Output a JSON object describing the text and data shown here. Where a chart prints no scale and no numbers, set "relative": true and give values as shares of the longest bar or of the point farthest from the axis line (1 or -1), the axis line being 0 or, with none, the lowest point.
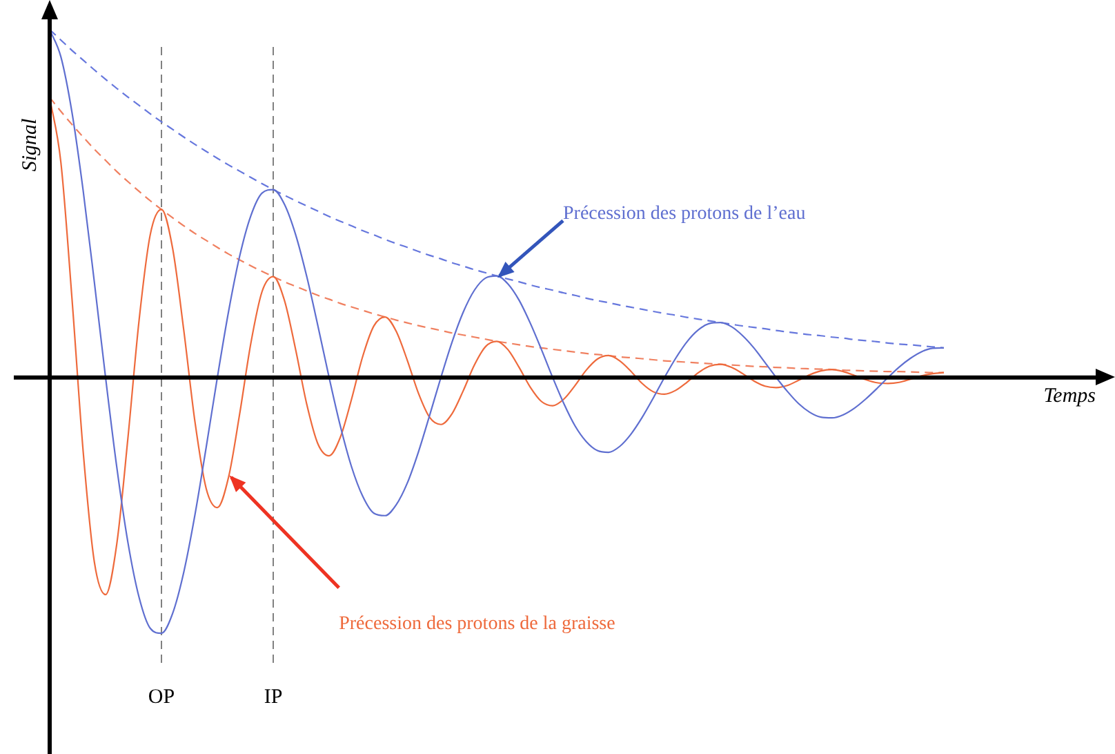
{
  "chart_data": {
    "type": "line",
    "relative": true,
    "xlabel": "Temps",
    "ylabel": "Signal",
    "legend": false,
    "marker": "none",
    "grid": false,
    "categories": [
      null,
      null,
      null,
      null,
      null,
      null,
      null,
      null,
      null,
      null,
      "OP",
      null,
      null,
      null,
      null,
      null,
      null,
      null,
      null,
      null,
      "IP",
      null,
      null,
      null,
      null,
      null,
      null,
      null,
      null,
      null,
      null,
      null,
      null,
      null,
      null,
      null,
      null,
      null,
      null,
      null,
      null,
      null,
      null,
      null,
      null,
      null,
      null,
      null,
      null,
      null,
      null,
      null,
      null,
      null,
      null,
      null,
      null,
      null,
      null,
      null,
      null,
      null,
      null,
      null,
      null,
      null,
      null,
      null,
      null,
      null,
      null,
      null,
      null,
      null,
      null,
      null,
      null,
      null,
      null,
      null,
      null
    ],
    "ref_lines": [
      {
        "axis": "x",
        "value": "OP",
        "color": "#808080",
        "line_style": "dashed"
      },
      {
        "axis": "x",
        "value": "IP",
        "color": "#808080",
        "line_style": "dashed"
      }
    ],
    "series": [
      {
        "name": "Précession des protons de l’eau",
        "color": "#5f6fd0",
        "line_style": "solid",
        "values": [
          1,
          0.922,
          0.761,
          0.536,
          0.273,
          0,
          -0.257,
          -0.474,
          -0.632,
          -0.721,
          -0.735,
          -0.678,
          -0.559,
          -0.394,
          -0.201,
          0,
          0.189,
          0.349,
          0.465,
          0.53,
          0.54,
          0.498,
          0.411,
          0.29,
          0.148,
          0,
          -0.139,
          -0.256,
          -0.341,
          -0.39,
          -0.397,
          -0.366,
          -0.303,
          -0.213,
          -0.108,
          0,
          0.102,
          0.188,
          0.251,
          0.286,
          0.292,
          0.269,
          0.222,
          0.156,
          0.08,
          0,
          -0.075,
          -0.139,
          -0.184,
          -0.21,
          -0.215,
          -0.198,
          -0.163,
          -0.115,
          -0.059,
          0,
          0.055,
          0.102,
          0.136,
          0.155,
          0.158,
          0.146,
          0.12,
          0.085,
          0.043,
          0,
          -0.04,
          -0.075,
          -0.1,
          -0.114,
          -0.116,
          -0.107,
          -0.088,
          -0.062,
          -0.032,
          0,
          0.03,
          0.055,
          0.074,
          0.084,
          0.085
        ]
      },
      {
        "name": "Précession des protons de la graisse",
        "color": "#ee6a3c",
        "line_style": "solid",
        "values": [
          0.805,
          0.619,
          0.225,
          -0.214,
          -0.531,
          -0.624,
          -0.479,
          -0.174,
          0.165,
          0.411,
          0.483,
          0.371,
          0.135,
          -0.128,
          -0.319,
          -0.374,
          -0.287,
          -0.104,
          0.099,
          0.247,
          0.29,
          0.222,
          0.081,
          -0.077,
          -0.191,
          -0.225,
          -0.172,
          -0.063,
          0.06,
          0.148,
          0.174,
          0.133,
          0.049,
          -0.046,
          -0.115,
          -0.135,
          -0.104,
          -0.038,
          0.036,
          0.089,
          0.104,
          0.08,
          0.029,
          -0.028,
          -0.069,
          -0.081,
          -0.062,
          -0.023,
          0.021,
          0.053,
          0.063,
          0.048,
          0.018,
          -0.017,
          -0.041,
          -0.048,
          -0.037,
          -0.014,
          0.013,
          0.032,
          0.038,
          0.029,
          0.011,
          -0.01,
          -0.025,
          -0.029,
          -0.023,
          -0.008,
          0.008,
          0.019,
          0.023,
          0.017,
          0.006,
          -0.006,
          -0.015,
          -0.017,
          -0.014,
          -0.005,
          0.005,
          0.011,
          0.014
        ]
      },
      {
        "color": "#6677dd",
        "line_style": "dashed",
        "values": [
          1,
          0.97,
          0.94,
          0.912,
          0.884,
          0.857,
          0.831,
          0.806,
          0.782,
          0.758,
          0.735,
          0.713,
          0.691,
          0.67,
          0.65,
          0.63,
          0.611,
          0.593,
          0.575,
          0.557,
          0.54,
          0.524,
          0.508,
          0.493,
          0.478,
          0.463,
          0.449,
          0.436,
          0.422,
          0.41,
          0.397,
          0.385,
          0.374,
          0.362,
          0.351,
          0.341,
          0.33,
          0.32,
          0.31,
          0.301,
          0.292,
          0.283,
          0.275,
          0.266,
          0.258,
          0.251,
          0.243,
          0.236,
          0.228,
          0.221,
          0.215,
          0.208,
          0.202,
          0.196,
          0.19,
          0.184,
          0.179,
          0.173,
          0.168,
          0.163,
          0.158,
          0.153,
          0.148,
          0.144,
          0.14,
          0.135,
          0.131,
          0.127,
          0.123,
          0.12,
          0.116,
          0.113,
          0.109,
          0.106,
          0.103,
          0.099,
          0.096,
          0.094,
          0.091,
          0.088,
          0.085
        ]
      },
      {
        "color": "#f08060",
        "line_style": "dashed",
        "values": [
          0.805,
          0.765,
          0.727,
          0.691,
          0.656,
          0.624,
          0.592,
          0.563,
          0.535,
          0.508,
          0.483,
          0.459,
          0.436,
          0.414,
          0.394,
          0.374,
          0.355,
          0.338,
          0.321,
          0.305,
          0.29,
          0.275,
          0.262,
          0.249,
          0.236,
          0.225,
          0.213,
          0.203,
          0.193,
          0.183,
          0.174,
          0.165,
          0.157,
          0.149,
          0.142,
          0.135,
          0.128,
          0.122,
          0.116,
          0.11,
          0.104,
          0.099,
          0.094,
          0.089,
          0.085,
          0.081,
          0.077,
          0.073,
          0.069,
          0.066,
          0.063,
          0.059,
          0.057,
          0.054,
          0.051,
          0.048,
          0.046,
          0.044,
          0.042,
          0.04,
          0.038,
          0.036,
          0.034,
          0.032,
          0.031,
          0.029,
          0.028,
          0.026,
          0.025,
          0.024,
          0.023,
          0.021,
          0.02,
          0.019,
          0.018,
          0.017,
          0.017,
          0.016,
          0.015,
          0.014,
          0.014
        ]
      }
    ]
  }
}
